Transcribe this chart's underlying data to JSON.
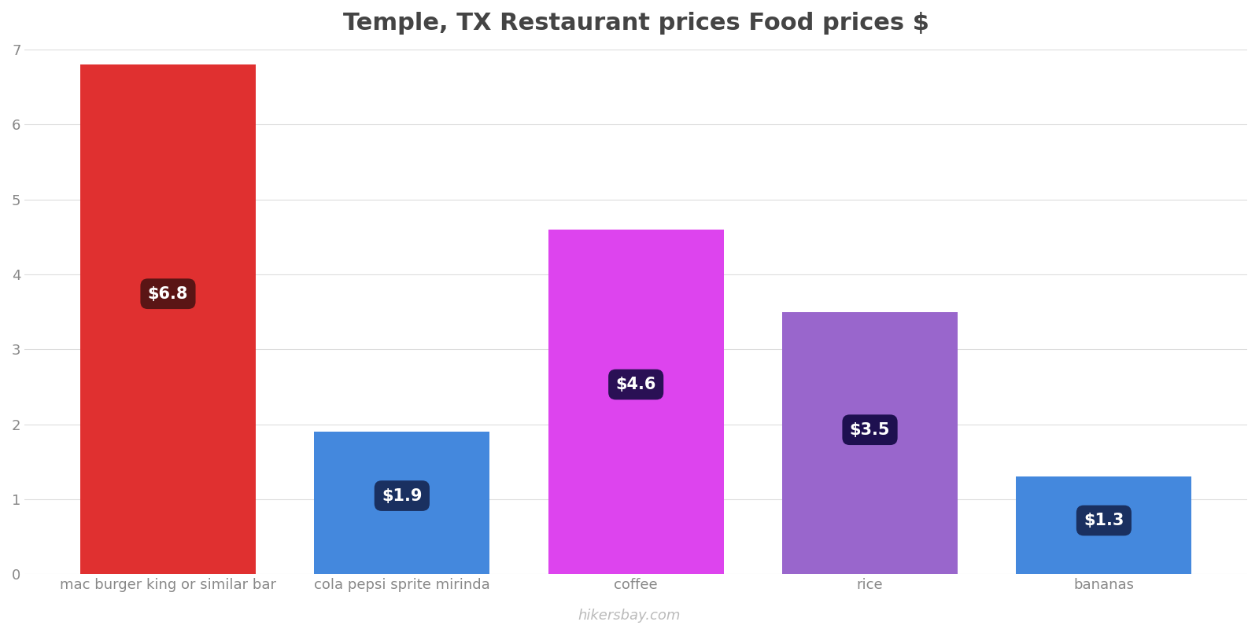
{
  "title": "Temple, TX Restaurant prices Food prices $",
  "categories": [
    "mac burger king or similar bar",
    "cola pepsi sprite mirinda",
    "coffee",
    "rice",
    "bananas"
  ],
  "values": [
    6.8,
    1.9,
    4.6,
    3.5,
    1.3
  ],
  "bar_colors": [
    "#e03030",
    "#4488dd",
    "#dd44ee",
    "#9966cc",
    "#4488dd"
  ],
  "label_bg_colors": [
    "#5a1515",
    "#1a3060",
    "#2a1055",
    "#1e1050",
    "#1a3060"
  ],
  "labels": [
    "$6.8",
    "$1.9",
    "$4.6",
    "$3.5",
    "$1.3"
  ],
  "ylim": [
    0,
    7
  ],
  "yticks": [
    0,
    1,
    2,
    3,
    4,
    5,
    6,
    7
  ],
  "background_color": "#ffffff",
  "grid_color": "#dddddd",
  "title_color": "#444444",
  "tick_color": "#888888",
  "footer_text": "hikersbay.com",
  "footer_color": "#bbbbbb",
  "title_fontsize": 22,
  "label_fontsize": 15,
  "tick_fontsize": 13,
  "footer_fontsize": 13,
  "bar_width": 0.75
}
